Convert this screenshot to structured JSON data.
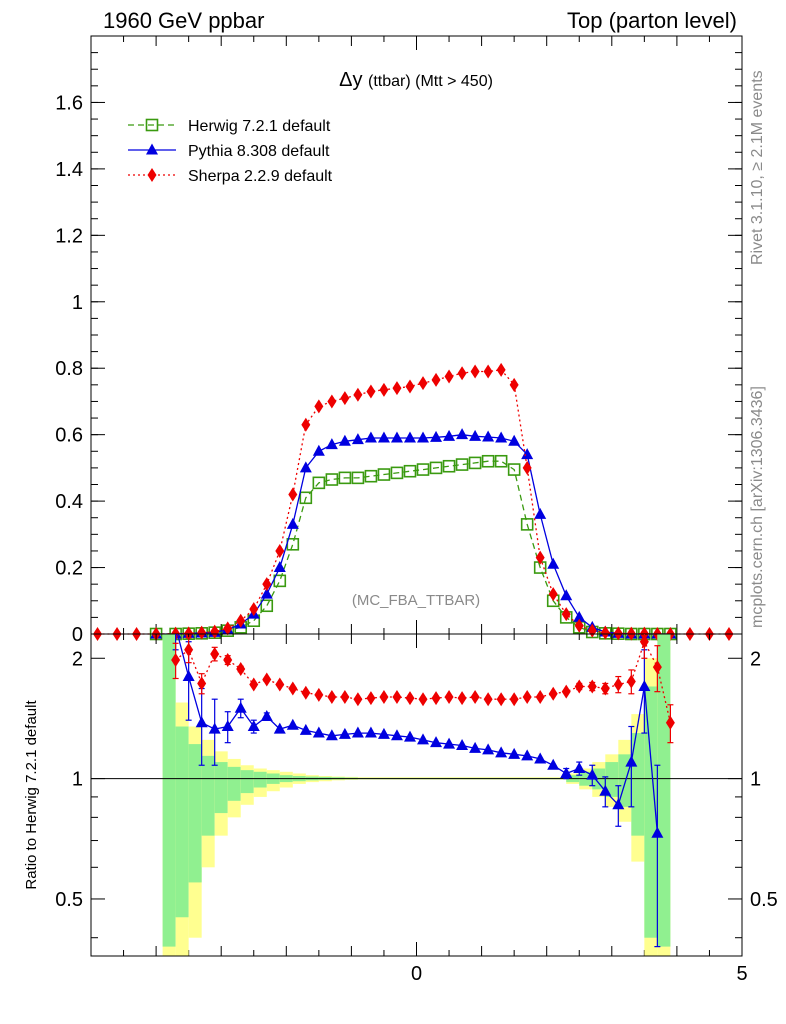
{
  "header": {
    "left": "1960 GeV ppbar",
    "right": "Top (parton level)"
  },
  "side_text": {
    "rivet": "Rivet 3.1.10, ≥ 2.1M events",
    "mcplots": "mcplots.cern.ch [arXiv:1306.3436]"
  },
  "chart_data": [
    {
      "type": "line",
      "title_main": "Δy",
      "title_sub": "(ttbar) (Mtt > 450)",
      "watermark": "(MC_FBA_TTBAR)",
      "xlim": [
        -5,
        5
      ],
      "ylim": [
        0,
        1.8
      ],
      "y_ticks": [
        0,
        0.2,
        0.4,
        0.6,
        0.8,
        1,
        1.2,
        1.4,
        1.6
      ],
      "y_tick_labels": [
        "0",
        "0.2",
        "0.4",
        "0.6",
        "0.8",
        "1",
        "1.2",
        "1.4",
        "1.6"
      ],
      "x_ticks": [
        0,
        5
      ],
      "x_tick_labels": [
        "0",
        "5"
      ],
      "grid": false,
      "legend_position": "top-left",
      "x": [
        -4.9,
        -4.6,
        -4.3,
        -4.0,
        -3.7,
        -3.5,
        -3.3,
        -3.1,
        -2.9,
        -2.7,
        -2.5,
        -2.3,
        -2.1,
        -1.9,
        -1.7,
        -1.5,
        -1.3,
        -1.1,
        -0.9,
        -0.7,
        -0.5,
        -0.3,
        -0.1,
        0.1,
        0.3,
        0.5,
        0.7,
        0.9,
        1.1,
        1.3,
        1.5,
        1.7,
        1.9,
        2.1,
        2.3,
        2.5,
        2.7,
        2.9,
        3.1,
        3.3,
        3.5,
        3.7,
        3.9,
        4.2,
        4.5,
        4.8
      ],
      "series": [
        {
          "name": "Herwig 7.2.1 default",
          "color": "#3a9a10",
          "marker": "open-square",
          "line": "dashed",
          "values": [
            null,
            null,
            null,
            0.0,
            0.0,
            0.001,
            0.002,
            0.004,
            0.01,
            0.02,
            0.04,
            0.085,
            0.16,
            0.27,
            0.41,
            0.455,
            0.465,
            0.47,
            0.47,
            0.475,
            0.48,
            0.485,
            0.49,
            0.495,
            0.5,
            0.505,
            0.51,
            0.515,
            0.52,
            0.52,
            0.495,
            0.33,
            0.2,
            0.1,
            0.05,
            0.02,
            0.006,
            0.002,
            0.001,
            0.0,
            0.0,
            0.0,
            0.0,
            null,
            null,
            null
          ]
        },
        {
          "name": "Pythia 8.308 default",
          "color": "#0000e0",
          "marker": "filled-triangle",
          "line": "solid",
          "values": [
            null,
            null,
            null,
            0.0,
            0.0,
            0.002,
            0.003,
            0.005,
            0.013,
            0.03,
            0.06,
            0.12,
            0.2,
            0.33,
            0.5,
            0.55,
            0.57,
            0.58,
            0.585,
            0.59,
            0.59,
            0.59,
            0.59,
            0.59,
            0.592,
            0.595,
            0.6,
            0.595,
            0.593,
            0.59,
            0.58,
            0.54,
            0.36,
            0.21,
            0.115,
            0.05,
            0.02,
            0.006,
            0.002,
            0.0,
            0.0,
            0.0,
            0.0,
            null,
            null,
            null
          ]
        },
        {
          "name": "Sherpa 2.2.9 default",
          "color": "#ee0000",
          "marker": "filled-diamond",
          "line": "dotted",
          "values": [
            0.0,
            0.0,
            0.0,
            0.0,
            0.001,
            0.002,
            0.004,
            0.007,
            0.017,
            0.04,
            0.075,
            0.15,
            0.25,
            0.42,
            0.63,
            0.685,
            0.7,
            0.71,
            0.72,
            0.73,
            0.735,
            0.74,
            0.745,
            0.755,
            0.765,
            0.775,
            0.785,
            0.79,
            0.79,
            0.795,
            0.75,
            0.5,
            0.23,
            0.12,
            0.06,
            0.025,
            0.01,
            0.004,
            0.002,
            0.001,
            0.001,
            0.0,
            0.0,
            0.0,
            0.0,
            0.0
          ]
        }
      ]
    },
    {
      "type": "line",
      "ylabel": "Ratio to Herwig 7.2.1 default",
      "xlim": [
        -5,
        5
      ],
      "ylim": [
        0.36,
        2.3
      ],
      "y_ticks": [
        0.5,
        1,
        2
      ],
      "y_tick_labels": [
        "0.5",
        "1",
        "2"
      ],
      "reference_line": 1,
      "log_scale_y": true,
      "band_edges": [
        -3.9,
        -3.7,
        -3.5,
        -3.3,
        -3.1,
        -2.9,
        -2.7,
        -2.5,
        -2.3,
        -2.1,
        -1.9,
        -1.7,
        -1.5,
        -1.3,
        -1.1,
        -0.9,
        2.3,
        2.5,
        2.7,
        2.9,
        3.1,
        3.3,
        3.5,
        3.7,
        3.9
      ],
      "band_inner": [
        [
          0.38,
          2.3
        ],
        [
          0.45,
          1.35
        ],
        [
          0.55,
          1.22
        ],
        [
          0.72,
          1.14
        ],
        [
          0.82,
          1.1
        ],
        [
          0.88,
          1.07
        ],
        [
          0.92,
          1.05
        ],
        [
          0.95,
          1.04
        ],
        [
          0.97,
          1.03
        ],
        [
          0.98,
          1.02
        ],
        [
          0.985,
          1.015
        ],
        [
          0.99,
          1.012
        ],
        [
          0.993,
          1.01
        ],
        [
          0.995,
          1.008
        ],
        [
          0.996,
          1.006
        ],
        [
          0.997,
          1.004
        ],
        [
          0.98,
          1.02
        ],
        [
          0.96,
          1.04
        ],
        [
          0.94,
          1.06
        ],
        [
          0.9,
          1.1
        ],
        [
          0.85,
          1.15
        ],
        [
          0.72,
          1.3
        ],
        [
          0.4,
          1.7
        ],
        [
          0.38,
          2.3
        ]
      ],
      "band_outer": [
        [
          0.36,
          2.3
        ],
        [
          0.36,
          1.55
        ],
        [
          0.4,
          1.35
        ],
        [
          0.6,
          1.25
        ],
        [
          0.72,
          1.17
        ],
        [
          0.8,
          1.12
        ],
        [
          0.86,
          1.08
        ],
        [
          0.9,
          1.06
        ],
        [
          0.93,
          1.05
        ],
        [
          0.95,
          1.04
        ],
        [
          0.97,
          1.03
        ],
        [
          0.98,
          1.02
        ],
        [
          0.985,
          1.015
        ],
        [
          0.99,
          1.012
        ],
        [
          0.993,
          1.01
        ],
        [
          0.995,
          1.008
        ],
        [
          0.97,
          1.03
        ],
        [
          0.94,
          1.06
        ],
        [
          0.9,
          1.1
        ],
        [
          0.85,
          1.15
        ],
        [
          0.78,
          1.25
        ],
        [
          0.62,
          1.45
        ],
        [
          0.36,
          2.0
        ],
        [
          0.36,
          2.3
        ]
      ],
      "band_colors": {
        "inner": "#90f090",
        "outer": "#ffff90"
      },
      "x": [
        -3.7,
        -3.5,
        -3.3,
        -3.1,
        -2.9,
        -2.7,
        -2.5,
        -2.3,
        -2.1,
        -1.9,
        -1.7,
        -1.5,
        -1.3,
        -1.1,
        -0.9,
        -0.7,
        -0.5,
        -0.3,
        -0.1,
        0.1,
        0.3,
        0.5,
        0.7,
        0.9,
        1.1,
        1.3,
        1.5,
        1.7,
        1.9,
        2.1,
        2.3,
        2.5,
        2.7,
        2.9,
        3.1,
        3.3,
        3.5,
        3.7,
        3.9
      ],
      "series": [
        {
          "name": "Pythia 8.308 default",
          "color": "#0000e0",
          "values": [
            2.4,
            1.8,
            1.38,
            1.33,
            1.35,
            1.5,
            1.35,
            1.43,
            1.33,
            1.36,
            1.32,
            1.3,
            1.28,
            1.29,
            1.3,
            1.3,
            1.29,
            1.28,
            1.27,
            1.25,
            1.23,
            1.22,
            1.21,
            1.19,
            1.18,
            1.16,
            1.15,
            1.14,
            1.12,
            1.08,
            1.03,
            1.06,
            1.02,
            0.93,
            0.86,
            1.1,
            1.7,
            0.73,
            null
          ],
          "err": [
            0.3,
            0.4,
            0.3,
            0.25,
            0.12,
            0.08,
            0.05,
            0.03,
            0.02,
            0.015,
            0.01,
            0.01,
            0.01,
            0.01,
            0.01,
            0.01,
            0.01,
            0.01,
            0.01,
            0.01,
            0.01,
            0.01,
            0.01,
            0.01,
            0.01,
            0.01,
            0.01,
            0.01,
            0.015,
            0.02,
            0.03,
            0.04,
            0.06,
            0.08,
            0.1,
            0.25,
            0.4,
            0.35,
            null
          ]
        },
        {
          "name": "Sherpa 2.2.9 default",
          "color": "#ee0000",
          "values": [
            1.98,
            2.1,
            1.73,
            2.05,
            1.98,
            1.88,
            1.72,
            1.77,
            1.72,
            1.68,
            1.64,
            1.62,
            1.6,
            1.6,
            1.58,
            1.59,
            1.6,
            1.6,
            1.59,
            1.58,
            1.59,
            1.6,
            1.59,
            1.6,
            1.58,
            1.58,
            1.58,
            1.6,
            1.6,
            1.63,
            1.65,
            1.7,
            1.7,
            1.68,
            1.72,
            1.75,
            2.2,
            1.9,
            1.38
          ],
          "err": [
            0.2,
            0.15,
            0.1,
            0.08,
            0.05,
            0.03,
            0.02,
            0.01,
            0.01,
            0.01,
            0.01,
            0.01,
            0.01,
            0.01,
            0.01,
            0.01,
            0.01,
            0.01,
            0.01,
            0.01,
            0.01,
            0.01,
            0.01,
            0.01,
            0.01,
            0.01,
            0.01,
            0.01,
            0.01,
            0.01,
            0.02,
            0.03,
            0.04,
            0.05,
            0.08,
            0.12,
            0.2,
            0.25,
            0.15
          ]
        }
      ]
    }
  ]
}
